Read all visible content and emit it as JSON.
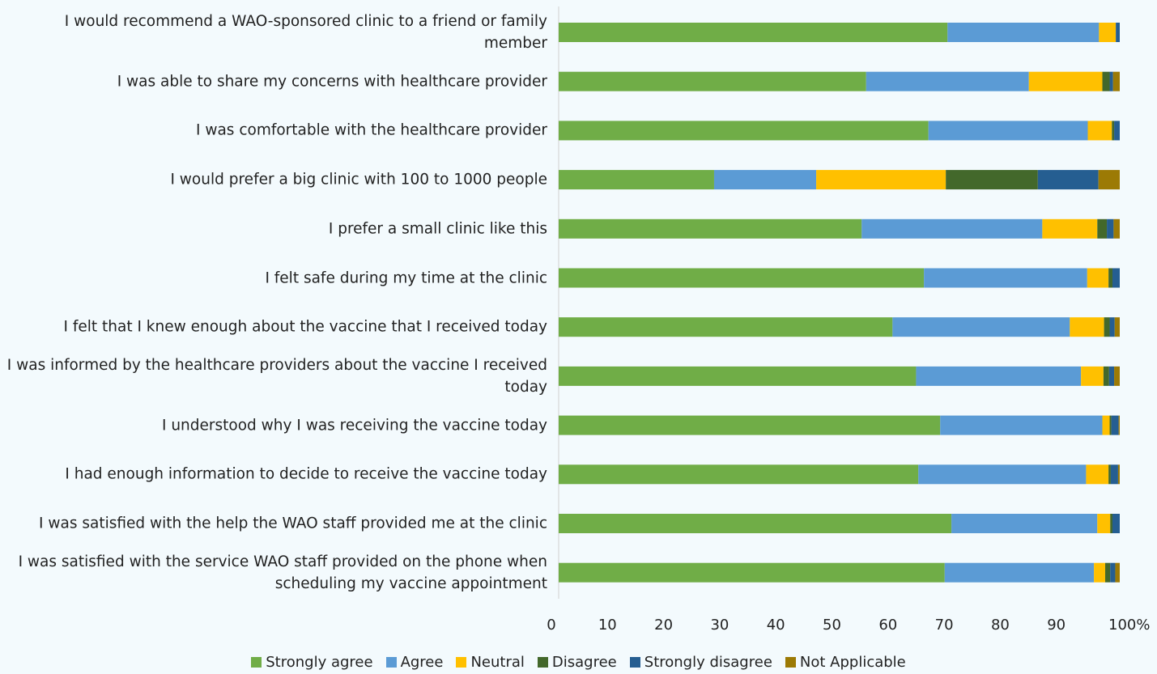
{
  "chart_data": {
    "type": "stacked-barh",
    "categories": [
      "I would recommend a WAO-sponsored clinic to a friend or family member",
      "I was able to share my concerns with healthcare provider",
      "I was comfortable with the healthcare provider",
      "I would prefer a big clinic with 100 to 1000 people",
      "I prefer a small clinic like this",
      "I felt safe during my time at the clinic",
      "I felt that I knew enough about the vaccine that I received today",
      "I was informed by the healthcare providers about the vaccine I received today",
      "I understood why I was receiving the vaccine today",
      "I had enough information to decide to receive the vaccine today",
      "I was satisfied with the help the WAO staff provided me at the clinic",
      "I was satisfied with the service WAO staff provided on the phone when scheduling my vaccine appointment"
    ],
    "series": [
      {
        "name": "Strongly agree",
        "color": "#70ad47",
        "values": [
          69.3,
          54.8,
          65.9,
          27.7,
          54.0,
          65.1,
          59.5,
          63.7,
          68.0,
          64.1,
          70.0,
          68.8
        ]
      },
      {
        "name": "Agree",
        "color": "#5b9bd5",
        "values": [
          27.0,
          29.0,
          28.4,
          18.2,
          32.2,
          29.1,
          31.6,
          29.4,
          28.9,
          29.9,
          26.0,
          26.6
        ]
      },
      {
        "name": "Neutral",
        "color": "#ffc000",
        "values": [
          3.0,
          13.1,
          4.3,
          23.1,
          9.8,
          3.8,
          6.1,
          4.0,
          1.3,
          4.0,
          2.3,
          2.0
        ]
      },
      {
        "name": "Disagree",
        "color": "#43682b",
        "values": [
          0,
          1.3,
          0.4,
          16.4,
          1.7,
          0.7,
          1.0,
          1.0,
          0.3,
          0.4,
          0.4,
          0.9
        ]
      },
      {
        "name": "Strongly disagree",
        "color": "#255e91",
        "values": [
          0.7,
          0.6,
          1.0,
          10.8,
          1.2,
          1.3,
          0.9,
          0.9,
          1.3,
          1.3,
          1.3,
          0.9
        ]
      },
      {
        "name": "Not Applicable",
        "color": "#9c7a05",
        "values": [
          0,
          1.2,
          0,
          3.8,
          1.1,
          0,
          0.9,
          1.0,
          0.2,
          0.3,
          0,
          0.8
        ]
      }
    ],
    "xlim": [
      0,
      100
    ],
    "xticks": [
      0,
      10,
      20,
      30,
      40,
      50,
      60,
      70,
      80,
      90,
      {
        "value": 100,
        "label": "100%"
      }
    ],
    "legend": "bottom"
  }
}
